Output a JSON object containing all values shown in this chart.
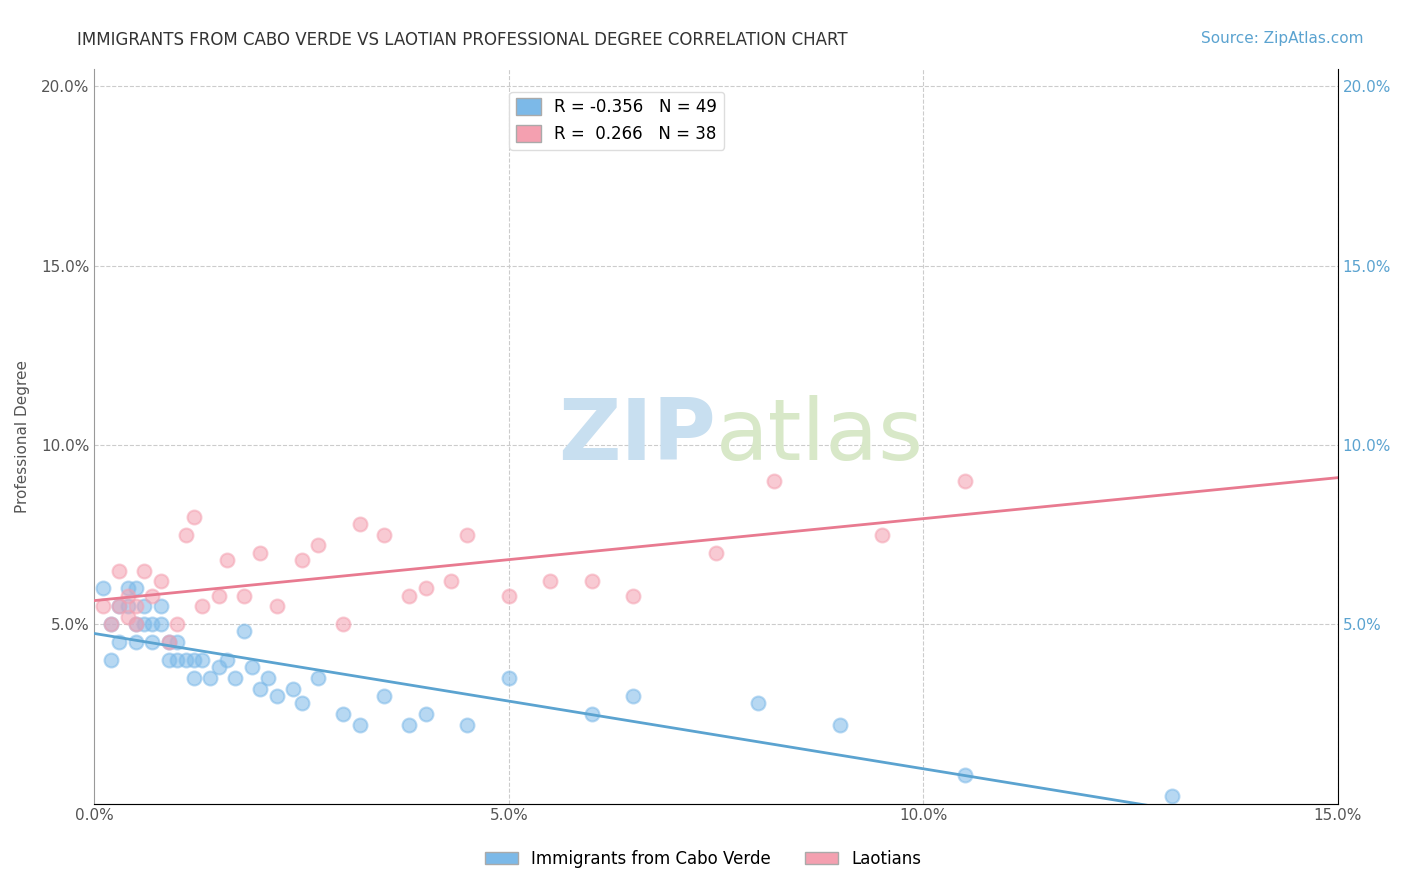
{
  "title": "IMMIGRANTS FROM CABO VERDE VS LAOTIAN PROFESSIONAL DEGREE CORRELATION CHART",
  "source_text": "Source: ZipAtlas.com",
  "ylabel": "Professional Degree",
  "xlim": [
    0.0,
    0.15
  ],
  "ylim": [
    0.0,
    0.205
  ],
  "xticks": [
    0.0,
    0.05,
    0.1,
    0.15
  ],
  "xtick_labels": [
    "0.0%",
    "5.0%",
    "10.0%",
    "15.0%"
  ],
  "yticks_left": [
    0.0,
    0.05,
    0.1,
    0.15,
    0.2
  ],
  "ytick_labels_left": [
    "",
    "5.0%",
    "10.0%",
    "15.0%",
    "20.0%"
  ],
  "yticks_right": [
    0.05,
    0.1,
    0.15,
    0.2
  ],
  "ytick_labels_right": [
    "5.0%",
    "10.0%",
    "15.0%",
    "20.0%"
  ],
  "series1_name": "Immigrants from Cabo Verde",
  "series1_color": "#7cb9e8",
  "series1_R": -0.356,
  "series1_N": 49,
  "series2_name": "Laotians",
  "series2_color": "#f4a0b0",
  "series2_R": 0.266,
  "series2_N": 38,
  "watermark_zip": "ZIP",
  "watermark_atlas": "atlas",
  "background_color": "#ffffff",
  "grid_color": "#cccccc",
  "title_fontsize": 12,
  "series1_x": [
    0.001,
    0.002,
    0.002,
    0.003,
    0.003,
    0.004,
    0.004,
    0.005,
    0.005,
    0.005,
    0.006,
    0.006,
    0.007,
    0.007,
    0.008,
    0.008,
    0.009,
    0.009,
    0.01,
    0.01,
    0.011,
    0.012,
    0.012,
    0.013,
    0.014,
    0.015,
    0.016,
    0.017,
    0.018,
    0.019,
    0.02,
    0.021,
    0.022,
    0.024,
    0.025,
    0.027,
    0.03,
    0.032,
    0.035,
    0.038,
    0.04,
    0.045,
    0.05,
    0.06,
    0.065,
    0.08,
    0.09,
    0.105,
    0.13
  ],
  "series1_y": [
    0.06,
    0.04,
    0.05,
    0.045,
    0.055,
    0.055,
    0.06,
    0.05,
    0.045,
    0.06,
    0.055,
    0.05,
    0.05,
    0.045,
    0.055,
    0.05,
    0.045,
    0.04,
    0.04,
    0.045,
    0.04,
    0.035,
    0.04,
    0.04,
    0.035,
    0.038,
    0.04,
    0.035,
    0.048,
    0.038,
    0.032,
    0.035,
    0.03,
    0.032,
    0.028,
    0.035,
    0.025,
    0.022,
    0.03,
    0.022,
    0.025,
    0.022,
    0.035,
    0.025,
    0.03,
    0.028,
    0.022,
    0.008,
    0.002
  ],
  "series2_x": [
    0.001,
    0.002,
    0.003,
    0.003,
    0.004,
    0.004,
    0.005,
    0.005,
    0.006,
    0.007,
    0.008,
    0.009,
    0.01,
    0.011,
    0.012,
    0.013,
    0.015,
    0.016,
    0.018,
    0.02,
    0.022,
    0.025,
    0.027,
    0.03,
    0.032,
    0.035,
    0.038,
    0.04,
    0.043,
    0.045,
    0.05,
    0.055,
    0.06,
    0.065,
    0.075,
    0.082,
    0.095,
    0.105
  ],
  "series2_y": [
    0.055,
    0.05,
    0.065,
    0.055,
    0.058,
    0.052,
    0.055,
    0.05,
    0.065,
    0.058,
    0.062,
    0.045,
    0.05,
    0.075,
    0.08,
    0.055,
    0.058,
    0.068,
    0.058,
    0.07,
    0.055,
    0.068,
    0.072,
    0.05,
    0.078,
    0.075,
    0.058,
    0.06,
    0.062,
    0.075,
    0.058,
    0.062,
    0.062,
    0.058,
    0.07,
    0.09,
    0.075,
    0.09
  ]
}
